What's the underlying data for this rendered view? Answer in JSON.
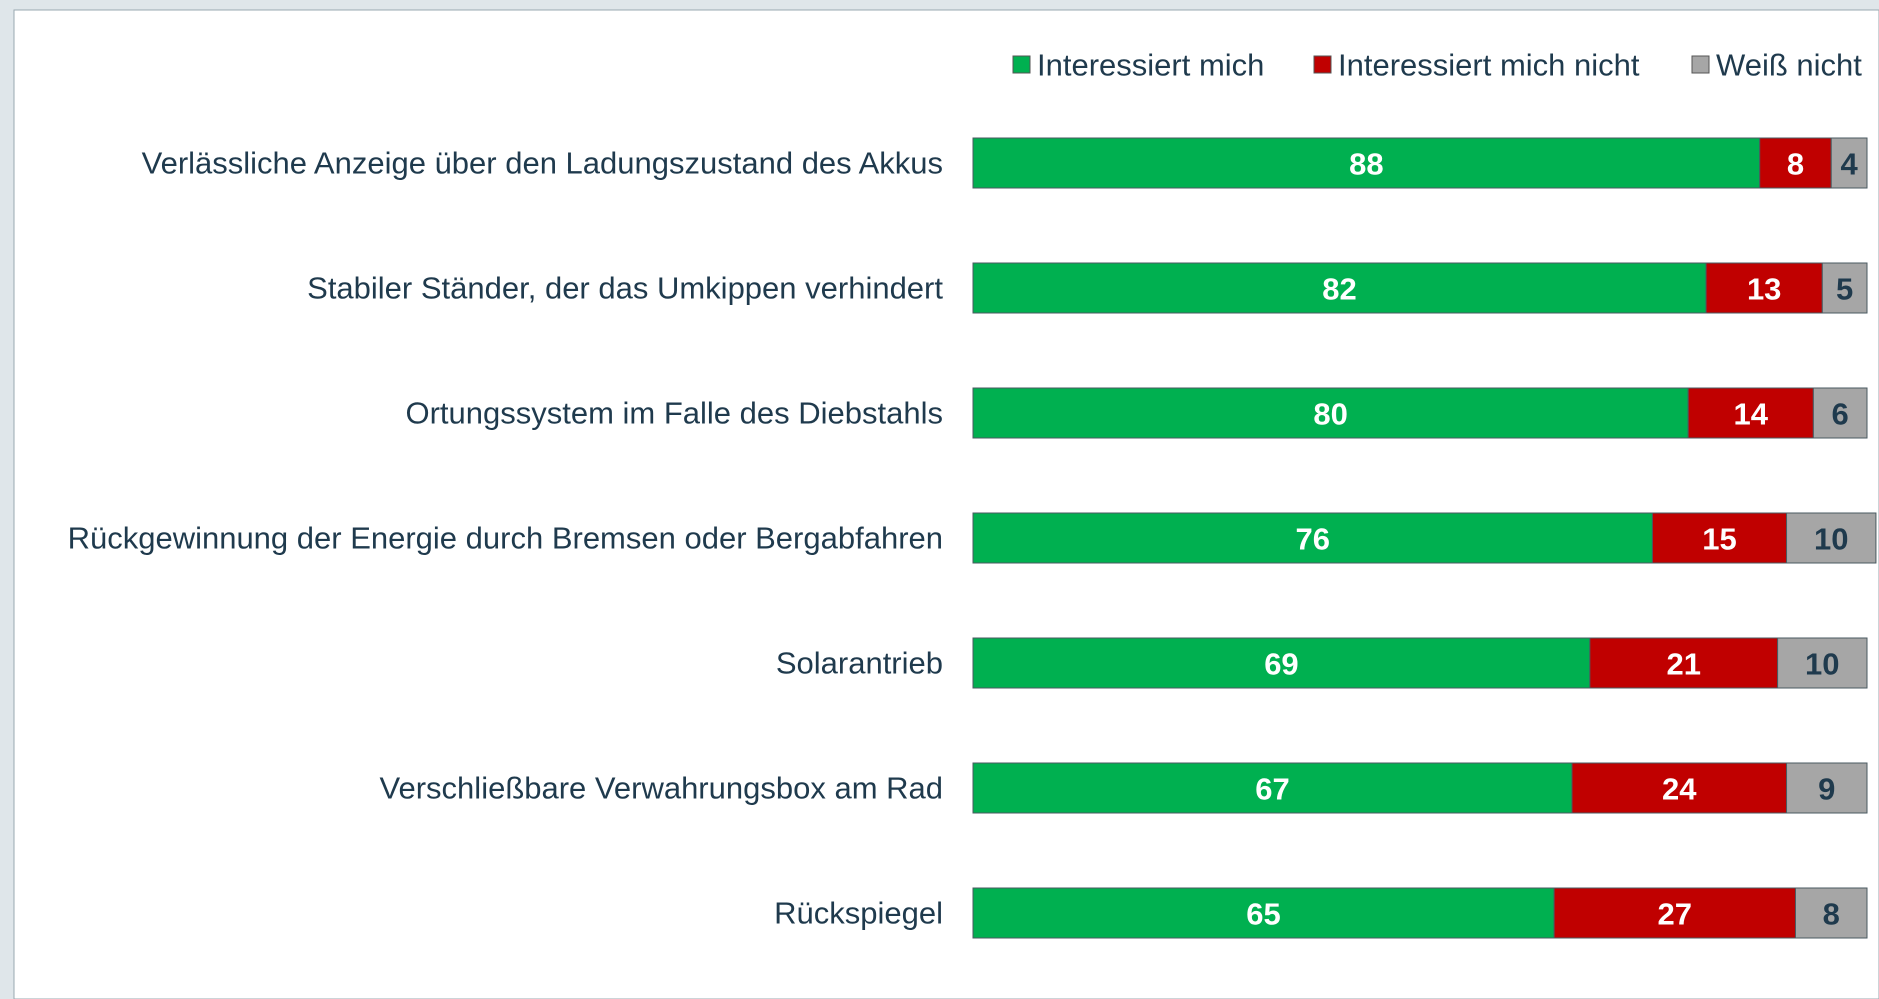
{
  "chart_data": {
    "type": "stacked-bar-horizontal",
    "categories": [
      "Verlässliche Anzeige über den Ladungszustand des Akkus",
      "Stabiler Ständer, der das Umkippen verhindert",
      "Ortungssystem im Falle des Diebstahls",
      "Rückgewinnung der Energie durch Bremsen oder Bergabfahren",
      "Solarantrieb",
      "Verschließbare Verwahrungsbox am Rad",
      "Rückspiegel"
    ],
    "series": [
      {
        "name": "Interessiert mich",
        "color": "#00b050",
        "values": [
          88,
          82,
          80,
          76,
          69,
          67,
          65
        ]
      },
      {
        "name": "Interessiert mich nicht",
        "color": "#c00000",
        "values": [
          8,
          13,
          14,
          15,
          21,
          24,
          27
        ]
      },
      {
        "name": "Weiß nicht",
        "color": "#a6a6a6",
        "values": [
          4,
          5,
          6,
          10,
          10,
          9,
          8
        ]
      }
    ],
    "xlim": [
      0,
      100
    ],
    "legend": "top-right"
  }
}
